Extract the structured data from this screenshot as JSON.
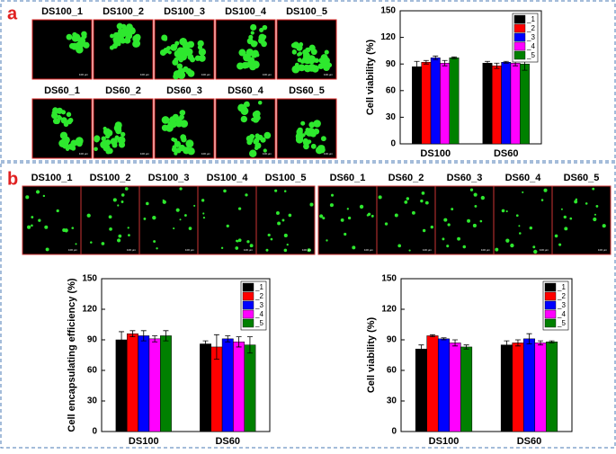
{
  "panels": {
    "a": {
      "letter": "a",
      "row1": [
        "DS100_1",
        "DS100_2",
        "DS100_3",
        "DS100_4",
        "DS100_5"
      ],
      "row2": [
        "DS60_1",
        "DS60_2",
        "DS60_3",
        "DS60_4",
        "DS60_5"
      ]
    },
    "b": {
      "letter": "b",
      "left": [
        "DS100_1",
        "DS100_2",
        "DS100_3",
        "DS100_4",
        "DS100_5"
      ],
      "right": [
        "DS60_1",
        "DS60_2",
        "DS60_3",
        "DS60_4",
        "DS60_5"
      ]
    },
    "scale_bar": "100 μm"
  },
  "chart_data": [
    {
      "type": "bar",
      "y_label": "Cell viability (%)",
      "categories": [
        "DS100",
        "DS60"
      ],
      "ylim": [
        0,
        150
      ],
      "yticks": [
        0,
        30,
        60,
        90,
        120,
        150
      ],
      "legend": "upper right",
      "series": [
        {
          "name": "_1",
          "color": "#000000",
          "values": [
            87,
            91
          ],
          "errors": [
            6,
            2
          ]
        },
        {
          "name": "_2",
          "color": "#ff0000",
          "values": [
            92,
            88
          ],
          "errors": [
            2,
            3
          ]
        },
        {
          "name": "_3",
          "color": "#0000ff",
          "values": [
            97,
            92
          ],
          "errors": [
            2,
            1
          ]
        },
        {
          "name": "_4",
          "color": "#ff00ff",
          "values": [
            91,
            91
          ],
          "errors": [
            3,
            3
          ]
        },
        {
          "name": "_5",
          "color": "#008000",
          "values": [
            97,
            90
          ],
          "errors": [
            1,
            7
          ]
        }
      ]
    },
    {
      "type": "bar",
      "y_label": "Cell encapsulating efficiency (%)",
      "categories": [
        "DS100",
        "DS60"
      ],
      "ylim": [
        0,
        150
      ],
      "yticks": [
        0,
        30,
        60,
        90,
        120,
        150
      ],
      "legend": "upper right",
      "series": [
        {
          "name": "_1",
          "color": "#000000",
          "values": [
            90,
            86
          ],
          "errors": [
            8,
            3
          ]
        },
        {
          "name": "_2",
          "color": "#ff0000",
          "values": [
            96,
            83
          ],
          "errors": [
            3,
            12
          ]
        },
        {
          "name": "_3",
          "color": "#0000ff",
          "values": [
            94,
            91
          ],
          "errors": [
            5,
            3
          ]
        },
        {
          "name": "_4",
          "color": "#ff00ff",
          "values": [
            91,
            88
          ],
          "errors": [
            3,
            5
          ]
        },
        {
          "name": "_5",
          "color": "#008000",
          "values": [
            94,
            85
          ],
          "errors": [
            5,
            8
          ]
        }
      ]
    },
    {
      "type": "bar",
      "y_label": "Cell viability (%)",
      "categories": [
        "DS100",
        "DS60"
      ],
      "ylim": [
        0,
        150
      ],
      "yticks": [
        0,
        30,
        60,
        90,
        120,
        150
      ],
      "legend": "upper right",
      "series": [
        {
          "name": "_1",
          "color": "#000000",
          "values": [
            81,
            85
          ],
          "errors": [
            4,
            4
          ]
        },
        {
          "name": "_2",
          "color": "#ff0000",
          "values": [
            94,
            87
          ],
          "errors": [
            1,
            3
          ]
        },
        {
          "name": "_3",
          "color": "#0000ff",
          "values": [
            91,
            91
          ],
          "errors": [
            1,
            5
          ]
        },
        {
          "name": "_4",
          "color": "#ff00ff",
          "values": [
            87,
            87
          ],
          "errors": [
            3,
            2
          ]
        },
        {
          "name": "_5",
          "color": "#008000",
          "values": [
            83,
            88
          ],
          "errors": [
            2,
            1
          ]
        }
      ]
    }
  ]
}
